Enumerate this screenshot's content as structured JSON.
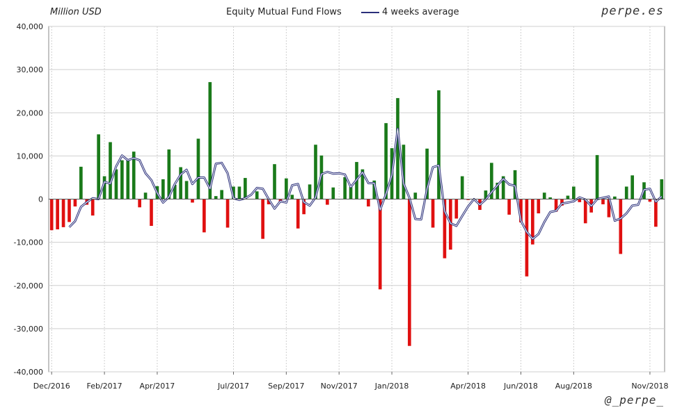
{
  "header": {
    "unit": "Million USD",
    "title": "Equity Mutual Fund Flows",
    "legend_label": "4 weeks average",
    "brand": "perpe.es",
    "handle": "@_perpe_"
  },
  "colors": {
    "positive": "#1a7a1a",
    "negative": "#e01010",
    "average": "#2a2f7a",
    "grid": "#cfcfcf"
  },
  "chart_data": {
    "type": "bar",
    "title": "Equity Mutual Fund Flows",
    "ylabel": "Million USD",
    "ylim": [
      -40000,
      40000
    ],
    "yticks": [
      -40000,
      -30000,
      -20000,
      -10000,
      0,
      10000,
      20000,
      30000,
      40000
    ],
    "ytick_labels": [
      "-40,000",
      "-30,000",
      "-20,000",
      "-10,000",
      "0",
      "10,000",
      "20,000",
      "30,000",
      "40,000"
    ],
    "xticks": [
      "Dec/2016",
      "Feb/2017",
      "Apr/2017",
      "Jul/2017",
      "Sep/2017",
      "Nov/2017",
      "Jan/2018",
      "Apr/2018",
      "Jun/2018",
      "Aug/2018",
      "Nov/2018"
    ],
    "xtick_week_index": [
      0,
      9,
      18,
      31,
      40,
      49,
      58,
      71,
      80,
      89,
      102
    ],
    "grid": true,
    "legend_position": "top",
    "series": [
      {
        "name": "weekly",
        "values": [
          -7200,
          -7000,
          -6500,
          -5300,
          -1700,
          7500,
          -1300,
          -3800,
          15000,
          5300,
          13200,
          6900,
          9000,
          9000,
          11000,
          -1900,
          1500,
          -6200,
          3000,
          4600,
          11500,
          3300,
          7400,
          4200,
          -800,
          14000,
          -7700,
          27100,
          700,
          2100,
          -6600,
          2900,
          2900,
          4900,
          0,
          1800,
          -9200,
          -1200,
          8100,
          -600,
          4800,
          1000,
          -6800,
          -3500,
          3400,
          12600,
          10100,
          -1300,
          2700,
          0,
          5100,
          2800,
          8600,
          6900,
          -1700,
          4300,
          -20900,
          17600,
          11800,
          23400,
          12600,
          -34000,
          1500,
          0,
          11700,
          -6600,
          25200,
          -13700,
          -11700,
          -4500,
          5300,
          -200,
          -200,
          -2500,
          2000,
          8400,
          3800,
          5300,
          -3600,
          6700,
          -5400,
          -17900,
          -10500,
          -3300,
          1500,
          400,
          -2900,
          -1500,
          800,
          2900,
          -700,
          -5600,
          -3100,
          10200,
          -1200,
          -4200,
          600,
          -12700,
          2900,
          5500,
          0,
          3900,
          -600,
          -6400,
          4600
        ]
      },
      {
        "name": "4 weeks average",
        "values": [
          null,
          null,
          null,
          -6500,
          -5100,
          -1800,
          -700,
          200,
          0,
          4000,
          3600,
          7600,
          10100,
          9000,
          9500,
          9000,
          6000,
          4400,
          1400,
          -800,
          500,
          3500,
          5700,
          6800,
          3500,
          5000,
          5000,
          2400,
          8200,
          8400,
          6000,
          200,
          -200,
          200,
          1000,
          2600,
          2400,
          0,
          -2200,
          -500,
          -800,
          3200,
          3500,
          -700,
          -1500,
          400,
          5800,
          6300,
          5900,
          6000,
          5700,
          2800,
          4500,
          6200,
          3700,
          3700,
          -2500,
          1200,
          5500,
          16300,
          3600,
          300,
          -4600,
          -4700,
          2400,
          7400,
          7800,
          -2800,
          -5600,
          -6200,
          -3900,
          -1700,
          0,
          -1300,
          -100,
          1600,
          3200,
          4700,
          3400,
          3100,
          -5000,
          -7600,
          -9200,
          -8100,
          -5300,
          -3000,
          -2700,
          -1000,
          -800,
          -500,
          400,
          -100,
          -1600,
          0,
          300,
          600,
          -5000,
          -4500,
          -3300,
          -1500,
          -1300,
          2200,
          2400,
          -600,
          600
        ]
      }
    ]
  }
}
